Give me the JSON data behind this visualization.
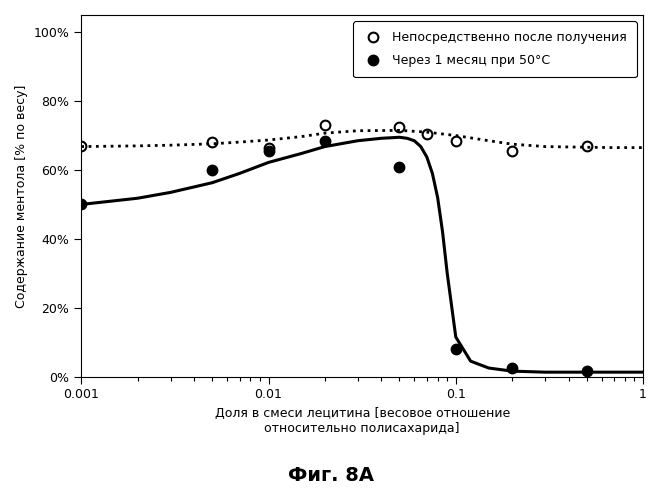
{
  "title": "Фиг. 8А",
  "xlabel": "Доля в смеси лецитина [весовое отношение\nотносительно полисахарида]",
  "ylabel": "Содержание ментола [% по весу]",
  "xlim": [
    0.001,
    1.0
  ],
  "ylim": [
    0.0,
    1.05
  ],
  "yticks": [
    0.0,
    0.2,
    0.4,
    0.6,
    0.8,
    1.0
  ],
  "ytick_labels": [
    "0%",
    "20%",
    "40%",
    "60%",
    "80%",
    "100%"
  ],
  "series1_label": "Непосредственно после получения",
  "series1_x": [
    0.001,
    0.005,
    0.01,
    0.02,
    0.05,
    0.07,
    0.1,
    0.2,
    0.5
  ],
  "series1_y": [
    0.67,
    0.68,
    0.665,
    0.73,
    0.725,
    0.705,
    0.685,
    0.655,
    0.67
  ],
  "series2_label": "Через 1 месяц при 50°C",
  "series2_x": [
    0.001,
    0.005,
    0.01,
    0.02,
    0.05,
    0.1,
    0.2,
    0.5
  ],
  "series2_y": [
    0.5,
    0.6,
    0.655,
    0.685,
    0.61,
    0.08,
    0.025,
    0.015
  ],
  "curve1_x": [
    0.001,
    0.002,
    0.003,
    0.005,
    0.007,
    0.01,
    0.015,
    0.02,
    0.03,
    0.05,
    0.07,
    0.1,
    0.15,
    0.2,
    0.3,
    0.5,
    0.7,
    1.0
  ],
  "curve1_y": [
    0.668,
    0.67,
    0.672,
    0.676,
    0.681,
    0.687,
    0.697,
    0.707,
    0.714,
    0.715,
    0.71,
    0.7,
    0.685,
    0.675,
    0.668,
    0.666,
    0.665,
    0.665
  ],
  "curve2_x": [
    0.001,
    0.002,
    0.003,
    0.005,
    0.007,
    0.01,
    0.015,
    0.02,
    0.03,
    0.04,
    0.05,
    0.055,
    0.06,
    0.065,
    0.07,
    0.075,
    0.08,
    0.085,
    0.09,
    0.1,
    0.12,
    0.15,
    0.2,
    0.3,
    0.5,
    0.7,
    1.0
  ],
  "curve2_y": [
    0.5,
    0.518,
    0.535,
    0.563,
    0.59,
    0.622,
    0.648,
    0.668,
    0.685,
    0.692,
    0.695,
    0.692,
    0.685,
    0.668,
    0.638,
    0.59,
    0.52,
    0.42,
    0.3,
    0.115,
    0.045,
    0.025,
    0.016,
    0.013,
    0.013,
    0.013,
    0.013
  ],
  "background_color": "#ffffff",
  "legend_fontsize": 9,
  "axis_fontsize": 9,
  "title_fontsize": 14,
  "marker_size": 7
}
